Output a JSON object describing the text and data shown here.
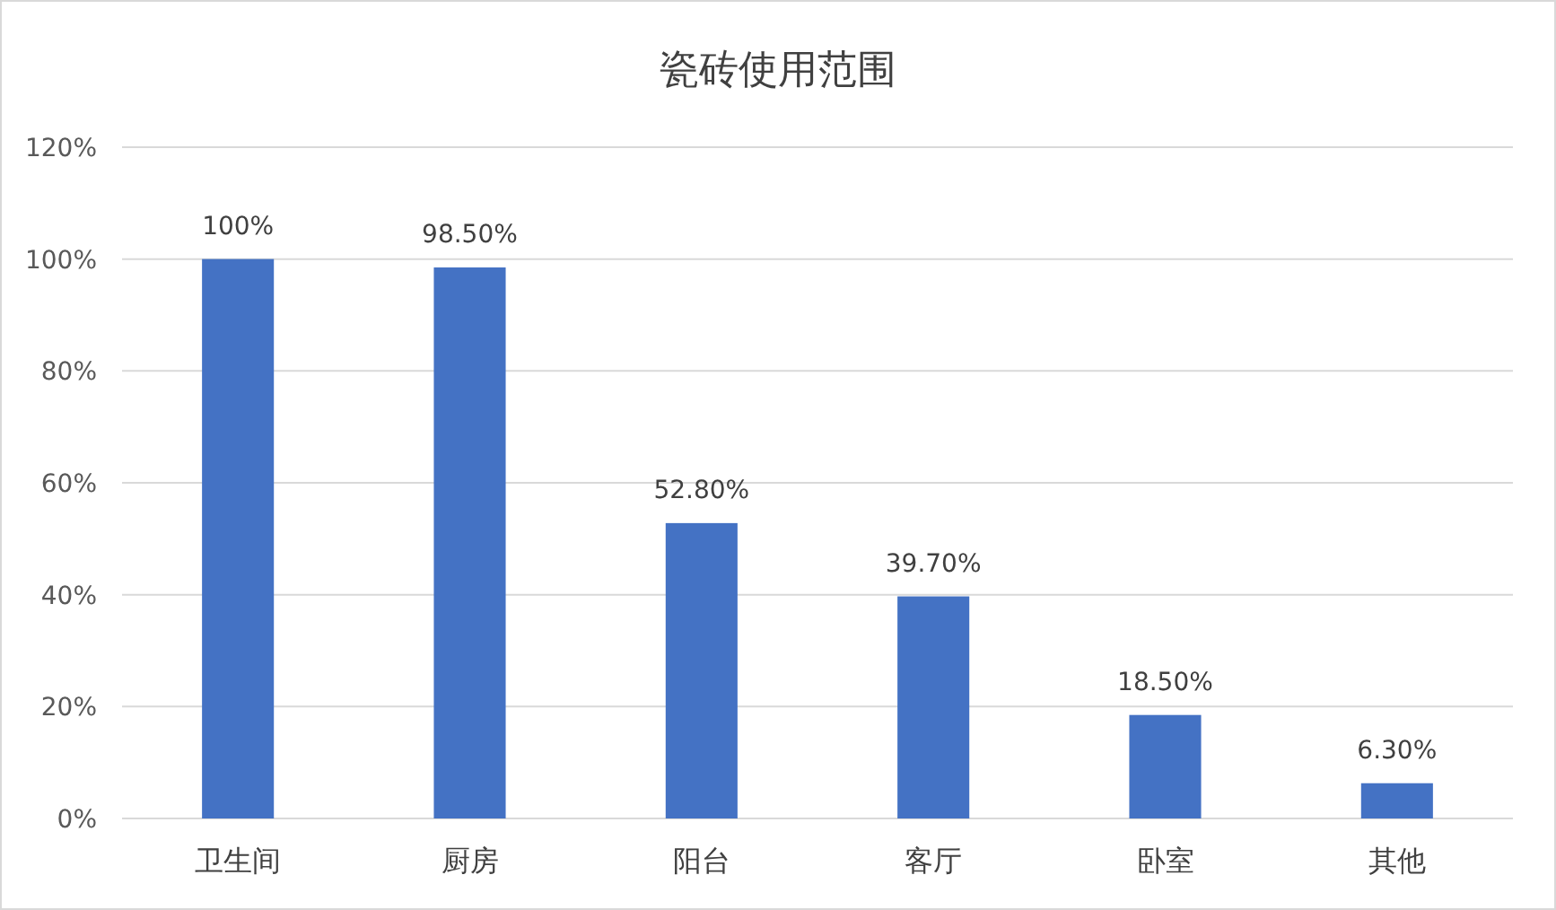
{
  "chart_data": {
    "type": "bar",
    "title": "瓷砖使用范围",
    "categories": [
      "卫生间",
      "厨房",
      "阳台",
      "客厅",
      "卧室",
      "其他"
    ],
    "values": [
      100,
      98.5,
      52.8,
      39.7,
      18.5,
      6.3
    ],
    "value_labels": [
      "100%",
      "98.50%",
      "52.80%",
      "39.70%",
      "18.50%",
      "6.30%"
    ],
    "color": "#4472c4",
    "ylim": [
      0,
      120
    ],
    "yticks": [
      {
        "value": 0,
        "label": "0%"
      },
      {
        "value": 20,
        "label": "20%"
      },
      {
        "value": 40,
        "label": "40%"
      },
      {
        "value": 60,
        "label": "60%"
      },
      {
        "value": 80,
        "label": "80%"
      },
      {
        "value": 100,
        "label": "100%"
      },
      {
        "value": 120,
        "label": "120%"
      }
    ],
    "grid": "y"
  }
}
